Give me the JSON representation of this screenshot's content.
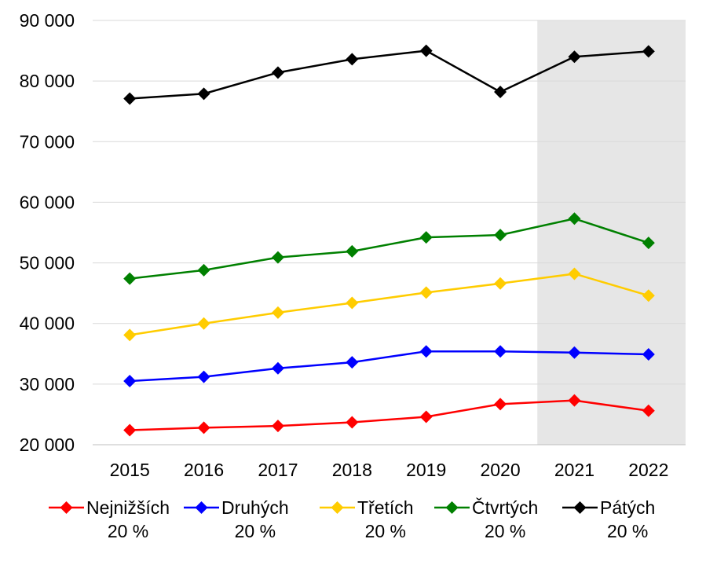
{
  "chart_data": {
    "type": "line",
    "x": [
      "2015",
      "2016",
      "2017",
      "2018",
      "2019",
      "2020",
      "2021",
      "2022"
    ],
    "ylim": [
      20000,
      90000
    ],
    "yticks": [
      {
        "value": 90000,
        "label": "90 000"
      },
      {
        "value": 80000,
        "label": "80 000"
      },
      {
        "value": 70000,
        "label": "70 000"
      },
      {
        "value": 60000,
        "label": "60 000"
      },
      {
        "value": 50000,
        "label": "50 000"
      },
      {
        "value": 40000,
        "label": "40 000"
      },
      {
        "value": 30000,
        "label": "30 000"
      },
      {
        "value": 20000,
        "label": "20 000"
      }
    ],
    "grid": true,
    "shaded_range": [
      "2021",
      "2022"
    ],
    "shade_color": "#e6e6e6",
    "legend_position": "bottom",
    "series": [
      {
        "name_line1": "Nejnižších",
        "name_line2": "20 %",
        "color": "#ff0000",
        "values": [
          22400,
          22800,
          23100,
          23700,
          24600,
          26700,
          27300,
          25600
        ]
      },
      {
        "name_line1": "Druhých",
        "name_line2": "20 %",
        "color": "#0000ff",
        "values": [
          30500,
          31200,
          32600,
          33600,
          35400,
          35400,
          35200,
          34900
        ]
      },
      {
        "name_line1": "Třetích",
        "name_line2": "20 %",
        "color": "#ffcc00",
        "values": [
          38100,
          40000,
          41800,
          43400,
          45100,
          46600,
          48200,
          44600
        ]
      },
      {
        "name_line1": "Čtvrtých",
        "name_line2": "20 %",
        "color": "#008000",
        "values": [
          47400,
          48800,
          50900,
          51900,
          54200,
          54600,
          57300,
          53300
        ]
      },
      {
        "name_line1": "Pátých",
        "name_line2": "20 %",
        "color": "#000000",
        "values": [
          77100,
          77900,
          81400,
          83600,
          85000,
          78200,
          84000,
          84900
        ]
      }
    ]
  }
}
